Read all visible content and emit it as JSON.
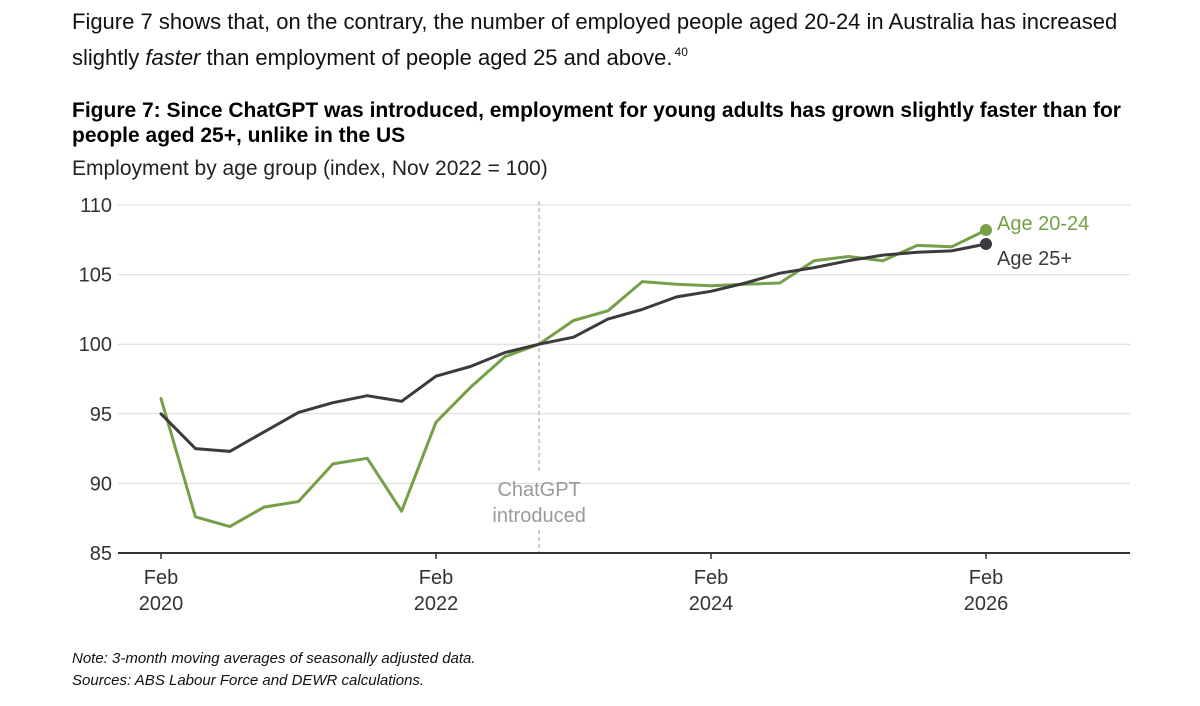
{
  "intro": {
    "before": "Figure 7 shows that, on the contrary, the number of employed people aged 20-24 in Australia has increased slightly ",
    "emphasis": "faster",
    "after": " than employment of people aged 25 and above.",
    "footnote": "40"
  },
  "notes": {
    "note": "Note: 3-month moving averages of seasonally adjusted data.",
    "sources": "Sources: ABS Labour Force and DEWR calculations."
  },
  "chart_data": {
    "type": "line",
    "title": "Figure 7: Since ChatGPT was introduced, employment for young adults has grown slightly faster than for people aged 25+, unlike in the US",
    "subtitle": "Employment by age group (index, Nov 2022 = 100)",
    "ylim": [
      85,
      110
    ],
    "y_ticks": [
      85,
      90,
      95,
      100,
      105,
      110
    ],
    "xlim": [
      "2020-02",
      "2026-06"
    ],
    "x_ticks": [
      {
        "x": "2020-02",
        "line1": "Feb",
        "line2": "2020"
      },
      {
        "x": "2022-02",
        "line1": "Feb",
        "line2": "2022"
      },
      {
        "x": "2024-02",
        "line1": "Feb",
        "line2": "2024"
      },
      {
        "x": "2026-02",
        "line1": "Feb",
        "line2": "2026"
      }
    ],
    "grid": true,
    "annotation": {
      "x": "2022-11",
      "line1": "ChatGPT",
      "line2": "introduced"
    },
    "series": [
      {
        "name": "Age 20-24",
        "color": "#75a048",
        "points": [
          [
            "2020-02",
            96.1
          ],
          [
            "2020-05",
            87.6
          ],
          [
            "2020-08",
            86.9
          ],
          [
            "2020-11",
            88.3
          ],
          [
            "2021-02",
            88.7
          ],
          [
            "2021-05",
            91.4
          ],
          [
            "2021-08",
            91.8
          ],
          [
            "2021-11",
            88.0
          ],
          [
            "2022-02",
            94.4
          ],
          [
            "2022-05",
            96.9
          ],
          [
            "2022-08",
            99.1
          ],
          [
            "2022-11",
            100.0
          ],
          [
            "2023-02",
            101.7
          ],
          [
            "2023-05",
            102.4
          ],
          [
            "2023-08",
            104.5
          ],
          [
            "2023-11",
            104.3
          ],
          [
            "2024-02",
            104.2
          ],
          [
            "2024-05",
            104.3
          ],
          [
            "2024-08",
            104.4
          ],
          [
            "2024-11",
            106.0
          ],
          [
            "2025-02",
            106.3
          ],
          [
            "2025-05",
            106.0
          ],
          [
            "2025-08",
            107.1
          ],
          [
            "2025-11",
            107.0
          ],
          [
            "2026-02",
            108.2
          ]
        ]
      },
      {
        "name": "Age 25+",
        "color": "#3a3b3f",
        "points": [
          [
            "2020-02",
            95.0
          ],
          [
            "2020-05",
            92.5
          ],
          [
            "2020-08",
            92.3
          ],
          [
            "2020-11",
            93.7
          ],
          [
            "2021-02",
            95.1
          ],
          [
            "2021-05",
            95.8
          ],
          [
            "2021-08",
            96.3
          ],
          [
            "2021-11",
            95.9
          ],
          [
            "2022-02",
            97.7
          ],
          [
            "2022-05",
            98.4
          ],
          [
            "2022-08",
            99.4
          ],
          [
            "2022-11",
            100.0
          ],
          [
            "2023-02",
            100.5
          ],
          [
            "2023-05",
            101.8
          ],
          [
            "2023-08",
            102.5
          ],
          [
            "2023-11",
            103.4
          ],
          [
            "2024-02",
            103.8
          ],
          [
            "2024-05",
            104.4
          ],
          [
            "2024-08",
            105.1
          ],
          [
            "2024-11",
            105.5
          ],
          [
            "2025-02",
            106.0
          ],
          [
            "2025-05",
            106.4
          ],
          [
            "2025-08",
            106.6
          ],
          [
            "2025-11",
            106.7
          ],
          [
            "2026-02",
            107.2
          ]
        ]
      }
    ]
  }
}
